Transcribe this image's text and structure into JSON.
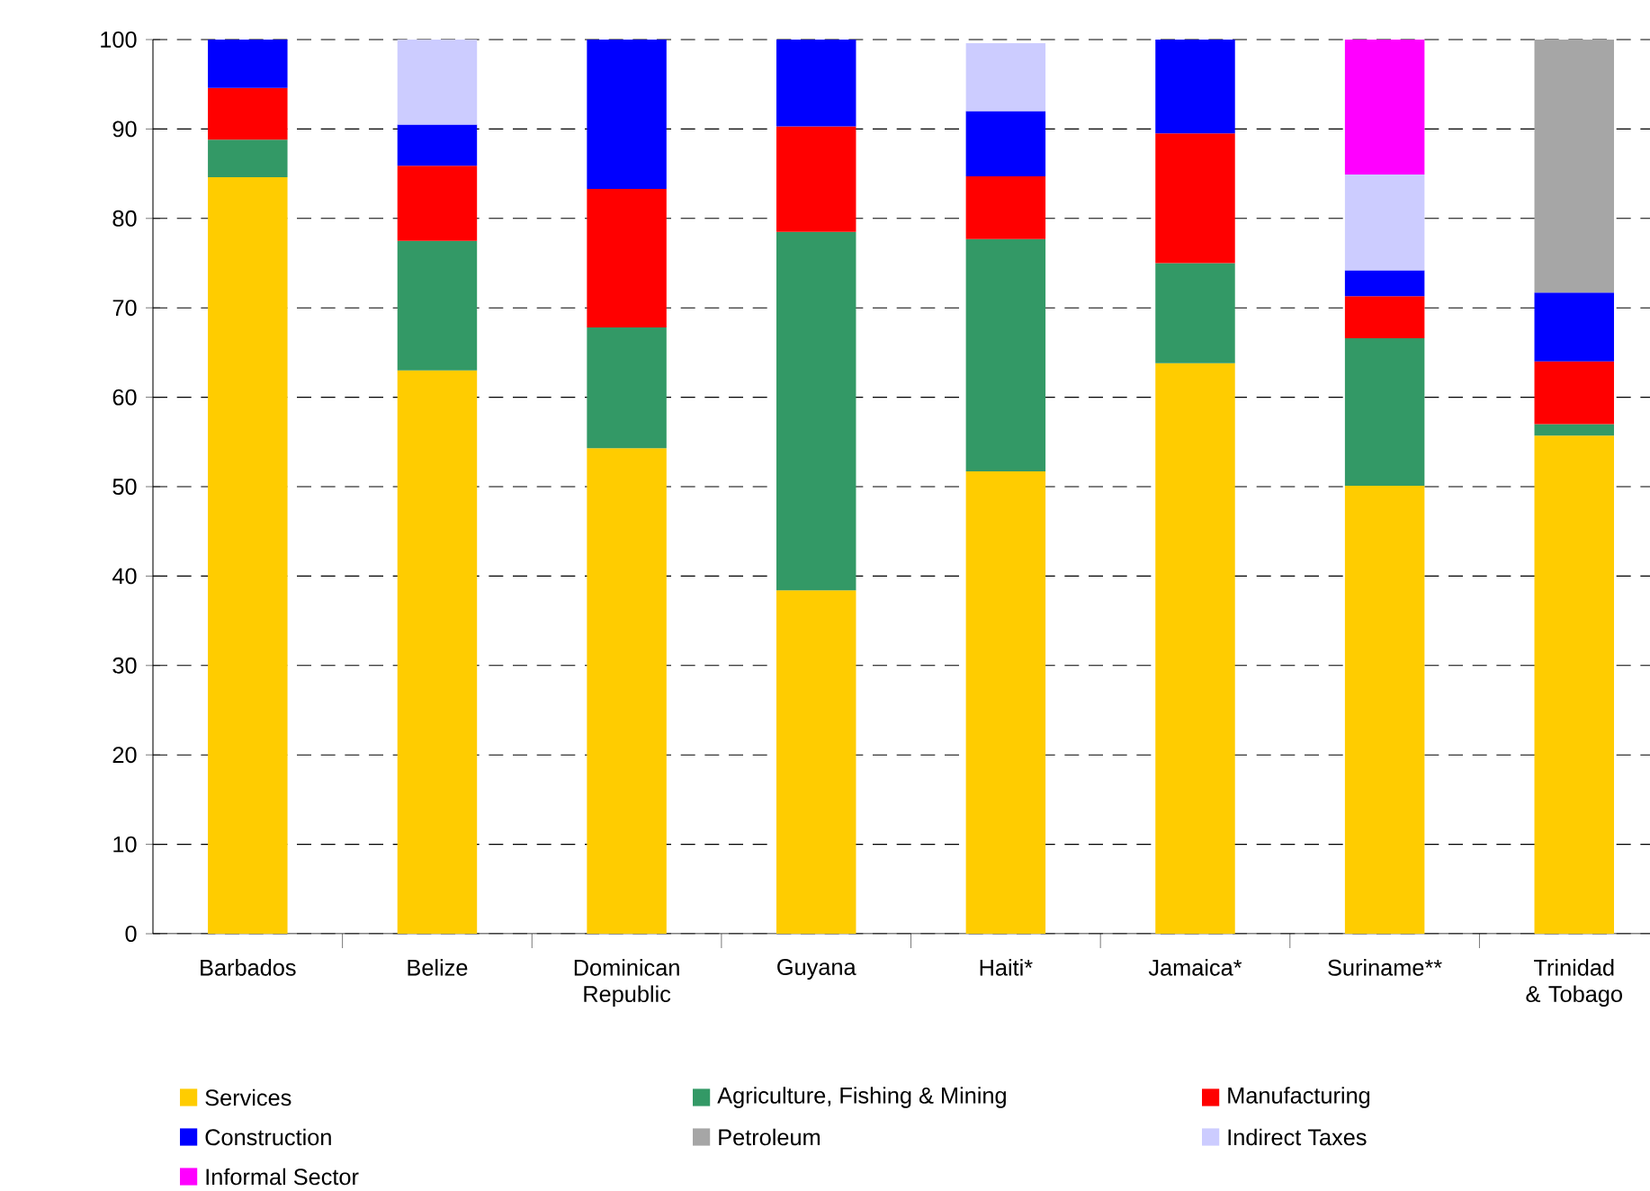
{
  "chart_data": {
    "type": "bar",
    "stacked": true,
    "categories": [
      "Barbados",
      "Belize",
      "Dominican Republic",
      "Guyana",
      "Haiti*",
      "Jamaica*",
      "Suriname**",
      "Trinidad & Tobago"
    ],
    "series": [
      {
        "name": "Services",
        "color": "#ffcc00",
        "values": [
          84.6,
          63.0,
          54.3,
          38.4,
          51.7,
          63.8,
          50.1,
          55.7
        ]
      },
      {
        "name": "Agriculture, Fishing & Mining",
        "color": "#339966",
        "values": [
          4.2,
          14.5,
          13.5,
          40.1,
          26.0,
          11.2,
          16.5,
          1.3
        ]
      },
      {
        "name": "Manufacturing",
        "color": "#ff0000",
        "values": [
          5.8,
          8.4,
          15.5,
          11.8,
          7.0,
          14.5,
          4.7,
          7.0
        ]
      },
      {
        "name": "Construction",
        "color": "#0000ff",
        "values": [
          5.4,
          4.6,
          16.7,
          9.7,
          7.3,
          10.5,
          2.9,
          7.7
        ]
      },
      {
        "name": "Petroleum",
        "color": "#a6a6a6",
        "values": [
          null,
          null,
          null,
          null,
          null,
          null,
          null,
          28.3
        ]
      },
      {
        "name": "Indirect Taxes",
        "color": "#ccccff",
        "values": [
          null,
          9.5,
          null,
          null,
          7.6,
          null,
          10.7,
          null
        ]
      },
      {
        "name": "Informal Sector",
        "color": "#ff00ff",
        "values": [
          null,
          null,
          null,
          null,
          null,
          null,
          15.1,
          null
        ]
      }
    ],
    "ylim": [
      0,
      100
    ],
    "yticks": [
      0,
      10,
      20,
      30,
      40,
      50,
      60,
      70,
      80,
      90,
      100
    ],
    "grid": "y",
    "legend": "bottom"
  }
}
